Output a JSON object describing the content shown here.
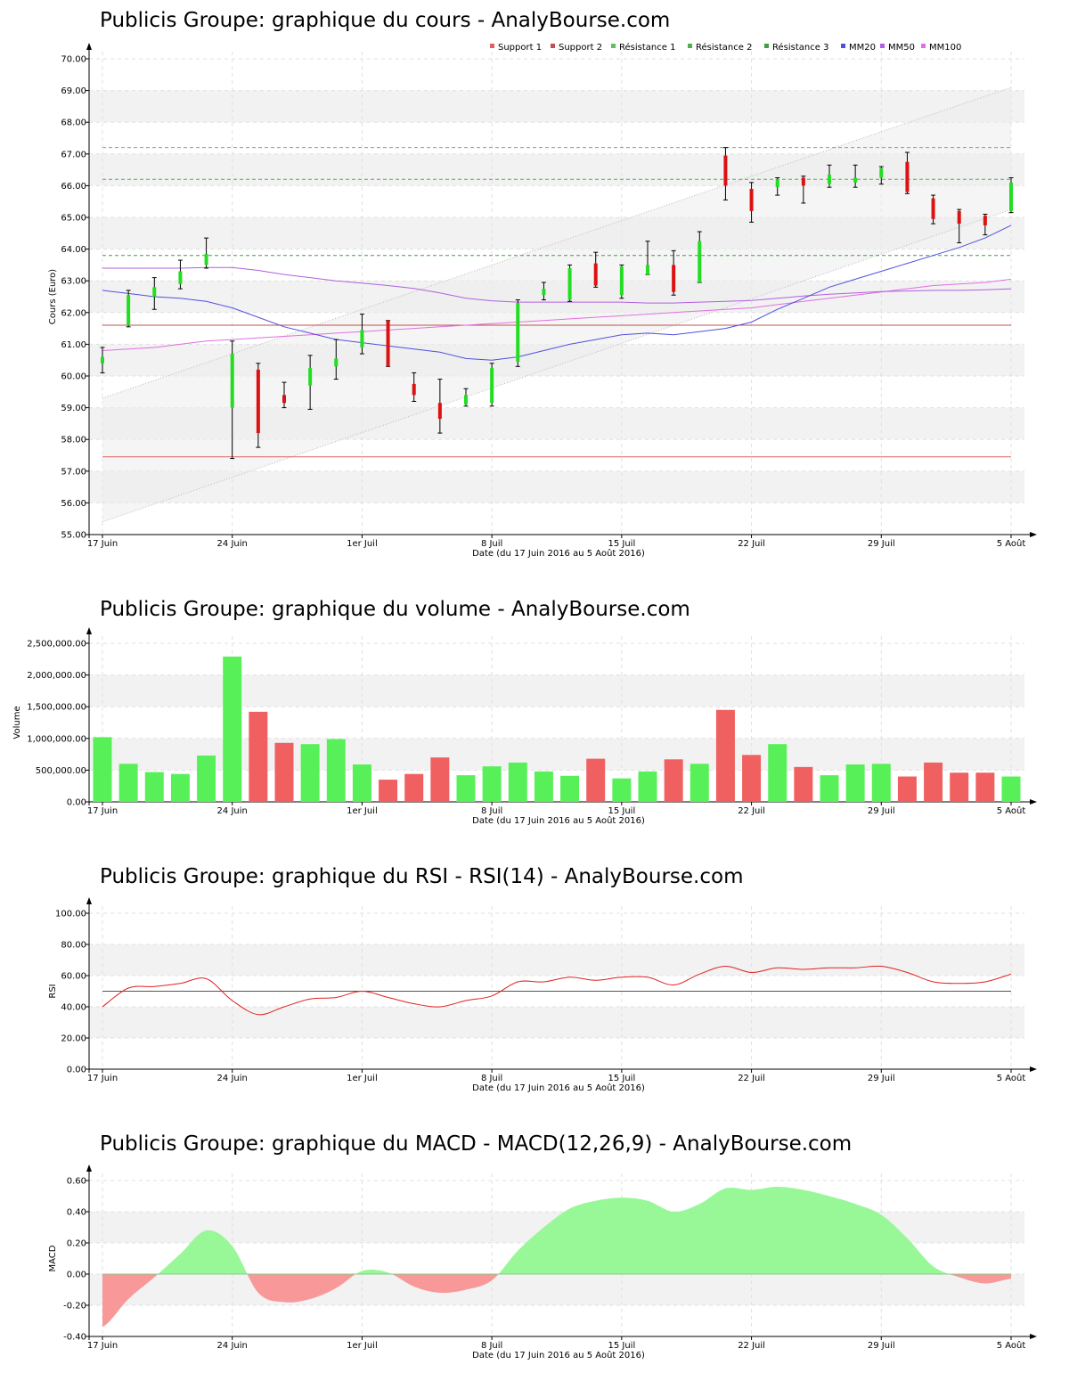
{
  "colors": {
    "up": "#58f058",
    "down": "#f06060",
    "up_candle": "#22dd22",
    "down_candle": "#dd1111",
    "support1": "#e06060",
    "support2": "#c05050",
    "resistance1": "#60c060",
    "resistance2": "#50b050",
    "resistance3": "#40a040",
    "mm20": "#5050e0",
    "mm50": "#b060e0",
    "mm100": "#e070e0",
    "rsi_line": "#e02020",
    "band": "#f2f2f2",
    "channel_fill": "#ececec"
  },
  "x_axis": {
    "ticks": [
      "17 Juin",
      "24 Juin",
      "1er Juil",
      "8 Juil",
      "15 Juil",
      "22 Juil",
      "29 Juil",
      "5 Août"
    ],
    "xlabel": "Date (du 17 Juin 2016 au 5 Août 2016)"
  },
  "chart_data": [
    {
      "type": "candlestick",
      "title": "Publicis Groupe: graphique du cours - AnalyBourse.com",
      "ylabel": "Cours (Euro)",
      "ylim": [
        55,
        70
      ],
      "yticks": [
        "55.00",
        "56.00",
        "57.00",
        "58.00",
        "59.00",
        "60.00",
        "61.00",
        "62.00",
        "63.00",
        "64.00",
        "65.00",
        "66.00",
        "67.00",
        "68.00",
        "69.00",
        "70.00"
      ],
      "legend": [
        "Support 1",
        "Support 2",
        "Résistance 1",
        "Résistance 2",
        "Résistance 3",
        "MM20",
        "MM50",
        "MM100"
      ],
      "legend_position": "top-right",
      "categories": [
        "17/06",
        "20/06",
        "21/06",
        "22/06",
        "23/06",
        "24/06",
        "27/06",
        "28/06",
        "29/06",
        "30/06",
        "01/07",
        "04/07",
        "05/07",
        "06/07",
        "07/07",
        "08/07",
        "11/07",
        "12/07",
        "13/07",
        "14/07",
        "15/07",
        "18/07",
        "19/07",
        "20/07",
        "21/07",
        "22/07",
        "25/07",
        "26/07",
        "27/07",
        "28/07",
        "29/07",
        "01/08",
        "02/08",
        "03/08",
        "04/08",
        "05/08"
      ],
      "candles": [
        {
          "open": 60.4,
          "high": 60.9,
          "low": 60.1,
          "close": 60.6
        },
        {
          "open": 61.6,
          "high": 62.7,
          "low": 61.55,
          "close": 62.55
        },
        {
          "open": 62.5,
          "high": 63.1,
          "low": 62.1,
          "close": 62.8
        },
        {
          "open": 62.9,
          "high": 63.65,
          "low": 62.75,
          "close": 63.3
        },
        {
          "open": 63.5,
          "high": 64.35,
          "low": 63.4,
          "close": 63.85
        },
        {
          "open": 59.0,
          "high": 61.1,
          "low": 57.4,
          "close": 60.7
        },
        {
          "open": 60.2,
          "high": 60.4,
          "low": 57.75,
          "close": 58.2
        },
        {
          "open": 59.4,
          "high": 59.8,
          "low": 59.0,
          "close": 59.15
        },
        {
          "open": 59.7,
          "high": 60.65,
          "low": 58.95,
          "close": 60.25
        },
        {
          "open": 60.3,
          "high": 61.15,
          "low": 59.9,
          "close": 60.55
        },
        {
          "open": 60.9,
          "high": 61.95,
          "low": 60.7,
          "close": 61.45
        },
        {
          "open": 61.75,
          "high": 61.75,
          "low": 60.3,
          "close": 60.3
        },
        {
          "open": 59.75,
          "high": 60.1,
          "low": 59.2,
          "close": 59.4
        },
        {
          "open": 59.15,
          "high": 59.9,
          "low": 58.2,
          "close": 58.65
        },
        {
          "open": 59.1,
          "high": 59.6,
          "low": 59.05,
          "close": 59.4
        },
        {
          "open": 59.15,
          "high": 60.4,
          "low": 59.05,
          "close": 60.25
        },
        {
          "open": 60.45,
          "high": 62.4,
          "low": 60.3,
          "close": 62.3
        },
        {
          "open": 62.55,
          "high": 62.95,
          "low": 62.4,
          "close": 62.75
        },
        {
          "open": 62.4,
          "high": 63.5,
          "low": 62.35,
          "close": 63.4
        },
        {
          "open": 63.55,
          "high": 63.9,
          "low": 62.8,
          "close": 62.85
        },
        {
          "open": 62.55,
          "high": 63.5,
          "low": 62.45,
          "close": 63.45
        },
        {
          "open": 63.2,
          "high": 64.25,
          "low": 63.2,
          "close": 63.5
        },
        {
          "open": 63.5,
          "high": 63.95,
          "low": 62.55,
          "close": 62.65
        },
        {
          "open": 62.95,
          "high": 64.55,
          "low": 62.95,
          "close": 64.25
        },
        {
          "open": 66.95,
          "high": 67.2,
          "low": 65.55,
          "close": 66.0
        },
        {
          "open": 65.9,
          "high": 66.1,
          "low": 64.85,
          "close": 65.2
        },
        {
          "open": 65.95,
          "high": 66.25,
          "low": 65.7,
          "close": 66.2
        },
        {
          "open": 66.25,
          "high": 66.3,
          "low": 65.45,
          "close": 66.0
        },
        {
          "open": 66.05,
          "high": 66.65,
          "low": 65.95,
          "close": 66.35
        },
        {
          "open": 66.1,
          "high": 66.65,
          "low": 65.95,
          "close": 66.25
        },
        {
          "open": 66.25,
          "high": 66.6,
          "low": 66.05,
          "close": 66.55
        },
        {
          "open": 66.75,
          "high": 67.05,
          "low": 65.75,
          "close": 65.8
        },
        {
          "open": 65.6,
          "high": 65.7,
          "low": 64.8,
          "close": 64.95
        },
        {
          "open": 65.2,
          "high": 65.25,
          "low": 64.2,
          "close": 64.8
        },
        {
          "open": 65.05,
          "high": 65.1,
          "low": 64.45,
          "close": 64.75
        },
        {
          "open": 65.2,
          "high": 66.25,
          "low": 65.15,
          "close": 66.1
        }
      ],
      "support1": 57.45,
      "support2": 61.6,
      "resistance1": 67.2,
      "resistance2": 66.2,
      "resistance3": 63.8,
      "channel": {
        "lower_start": 55.4,
        "lower_end": 65.25,
        "upper_start": 59.3,
        "upper_end": 69.1
      },
      "mm20": [
        62.7,
        62.6,
        62.5,
        62.45,
        62.35,
        62.15,
        61.85,
        61.55,
        61.35,
        61.15,
        61.05,
        60.95,
        60.85,
        60.75,
        60.55,
        60.5,
        60.6,
        60.8,
        61.0,
        61.15,
        61.3,
        61.35,
        61.3,
        61.4,
        61.5,
        61.7,
        62.1,
        62.45,
        62.8,
        63.05,
        63.3,
        63.55,
        63.8,
        64.05,
        64.35,
        64.75
      ],
      "mm50": [
        63.4,
        63.4,
        63.4,
        63.4,
        63.42,
        63.42,
        63.33,
        63.2,
        63.1,
        63.0,
        62.93,
        62.85,
        62.76,
        62.62,
        62.45,
        62.37,
        62.33,
        62.33,
        62.33,
        62.33,
        62.33,
        62.3,
        62.3,
        62.33,
        62.35,
        62.38,
        62.45,
        62.52,
        62.58,
        62.62,
        62.66,
        62.68,
        62.7,
        62.7,
        62.72,
        62.75
      ],
      "mm100": [
        60.8,
        60.85,
        60.9,
        61.0,
        61.1,
        61.15,
        61.2,
        61.25,
        61.3,
        61.35,
        61.4,
        61.45,
        61.5,
        61.55,
        61.6,
        61.65,
        61.7,
        61.75,
        61.8,
        61.85,
        61.9,
        61.95,
        62.0,
        62.05,
        62.1,
        62.15,
        62.25,
        62.35,
        62.45,
        62.55,
        62.65,
        62.75,
        62.85,
        62.9,
        62.95,
        63.05
      ]
    },
    {
      "type": "bar",
      "title": "Publicis Groupe: graphique du volume - AnalyBourse.com",
      "ylabel": "Volume",
      "ylim": [
        0,
        2500000
      ],
      "yticks": [
        "0.00",
        "500,000.00",
        "1,000,000.00",
        "1,500,000.00",
        "2,000,000.00",
        "2,500,000.00"
      ],
      "values": [
        1020000,
        600000,
        470000,
        440000,
        730000,
        2290000,
        1420000,
        930000,
        910000,
        990000,
        590000,
        350000,
        440000,
        700000,
        420000,
        560000,
        620000,
        480000,
        410000,
        680000,
        370000,
        480000,
        670000,
        600000,
        1450000,
        740000,
        910000,
        550000,
        420000,
        590000,
        600000,
        400000,
        620000,
        460000,
        460000,
        400000
      ],
      "direction": [
        "up",
        "up",
        "up",
        "up",
        "up",
        "up",
        "down",
        "down",
        "up",
        "up",
        "up",
        "down",
        "down",
        "down",
        "up",
        "up",
        "up",
        "up",
        "up",
        "down",
        "up",
        "up",
        "down",
        "up",
        "down",
        "down",
        "up",
        "down",
        "up",
        "up",
        "up",
        "down",
        "down",
        "down",
        "down",
        "up"
      ]
    },
    {
      "type": "line",
      "title": "Publicis Groupe: graphique du RSI - RSI(14) - AnalyBourse.com",
      "ylabel": "RSI",
      "ylim": [
        0,
        100
      ],
      "yticks": [
        "0.00",
        "20.00",
        "40.00",
        "60.00",
        "80.00",
        "100.00"
      ],
      "reference_line": 50,
      "values": [
        40,
        52,
        53,
        55,
        58,
        44,
        35,
        40,
        45,
        46,
        50,
        46,
        42,
        40,
        44,
        47,
        56,
        56,
        59,
        57,
        59,
        59,
        54,
        61,
        66,
        62,
        65,
        64,
        65,
        65,
        66,
        62,
        56,
        55,
        56,
        61
      ]
    },
    {
      "type": "area",
      "title": "Publicis Groupe: graphique du MACD - MACD(12,26,9) - AnalyBourse.com",
      "ylabel": "MACD",
      "ylim": [
        -0.4,
        0.6
      ],
      "yticks": [
        "-0.40",
        "-0.20",
        "0.00",
        "0.20",
        "0.40",
        "0.60"
      ],
      "values": [
        -0.34,
        -0.16,
        -0.02,
        0.13,
        0.28,
        0.18,
        -0.12,
        -0.18,
        -0.16,
        -0.09,
        0.02,
        0.01,
        -0.08,
        -0.12,
        -0.1,
        -0.04,
        0.15,
        0.3,
        0.42,
        0.47,
        0.49,
        0.47,
        0.4,
        0.45,
        0.55,
        0.54,
        0.56,
        0.54,
        0.5,
        0.45,
        0.38,
        0.23,
        0.05,
        -0.02,
        -0.06,
        -0.03
      ]
    }
  ]
}
